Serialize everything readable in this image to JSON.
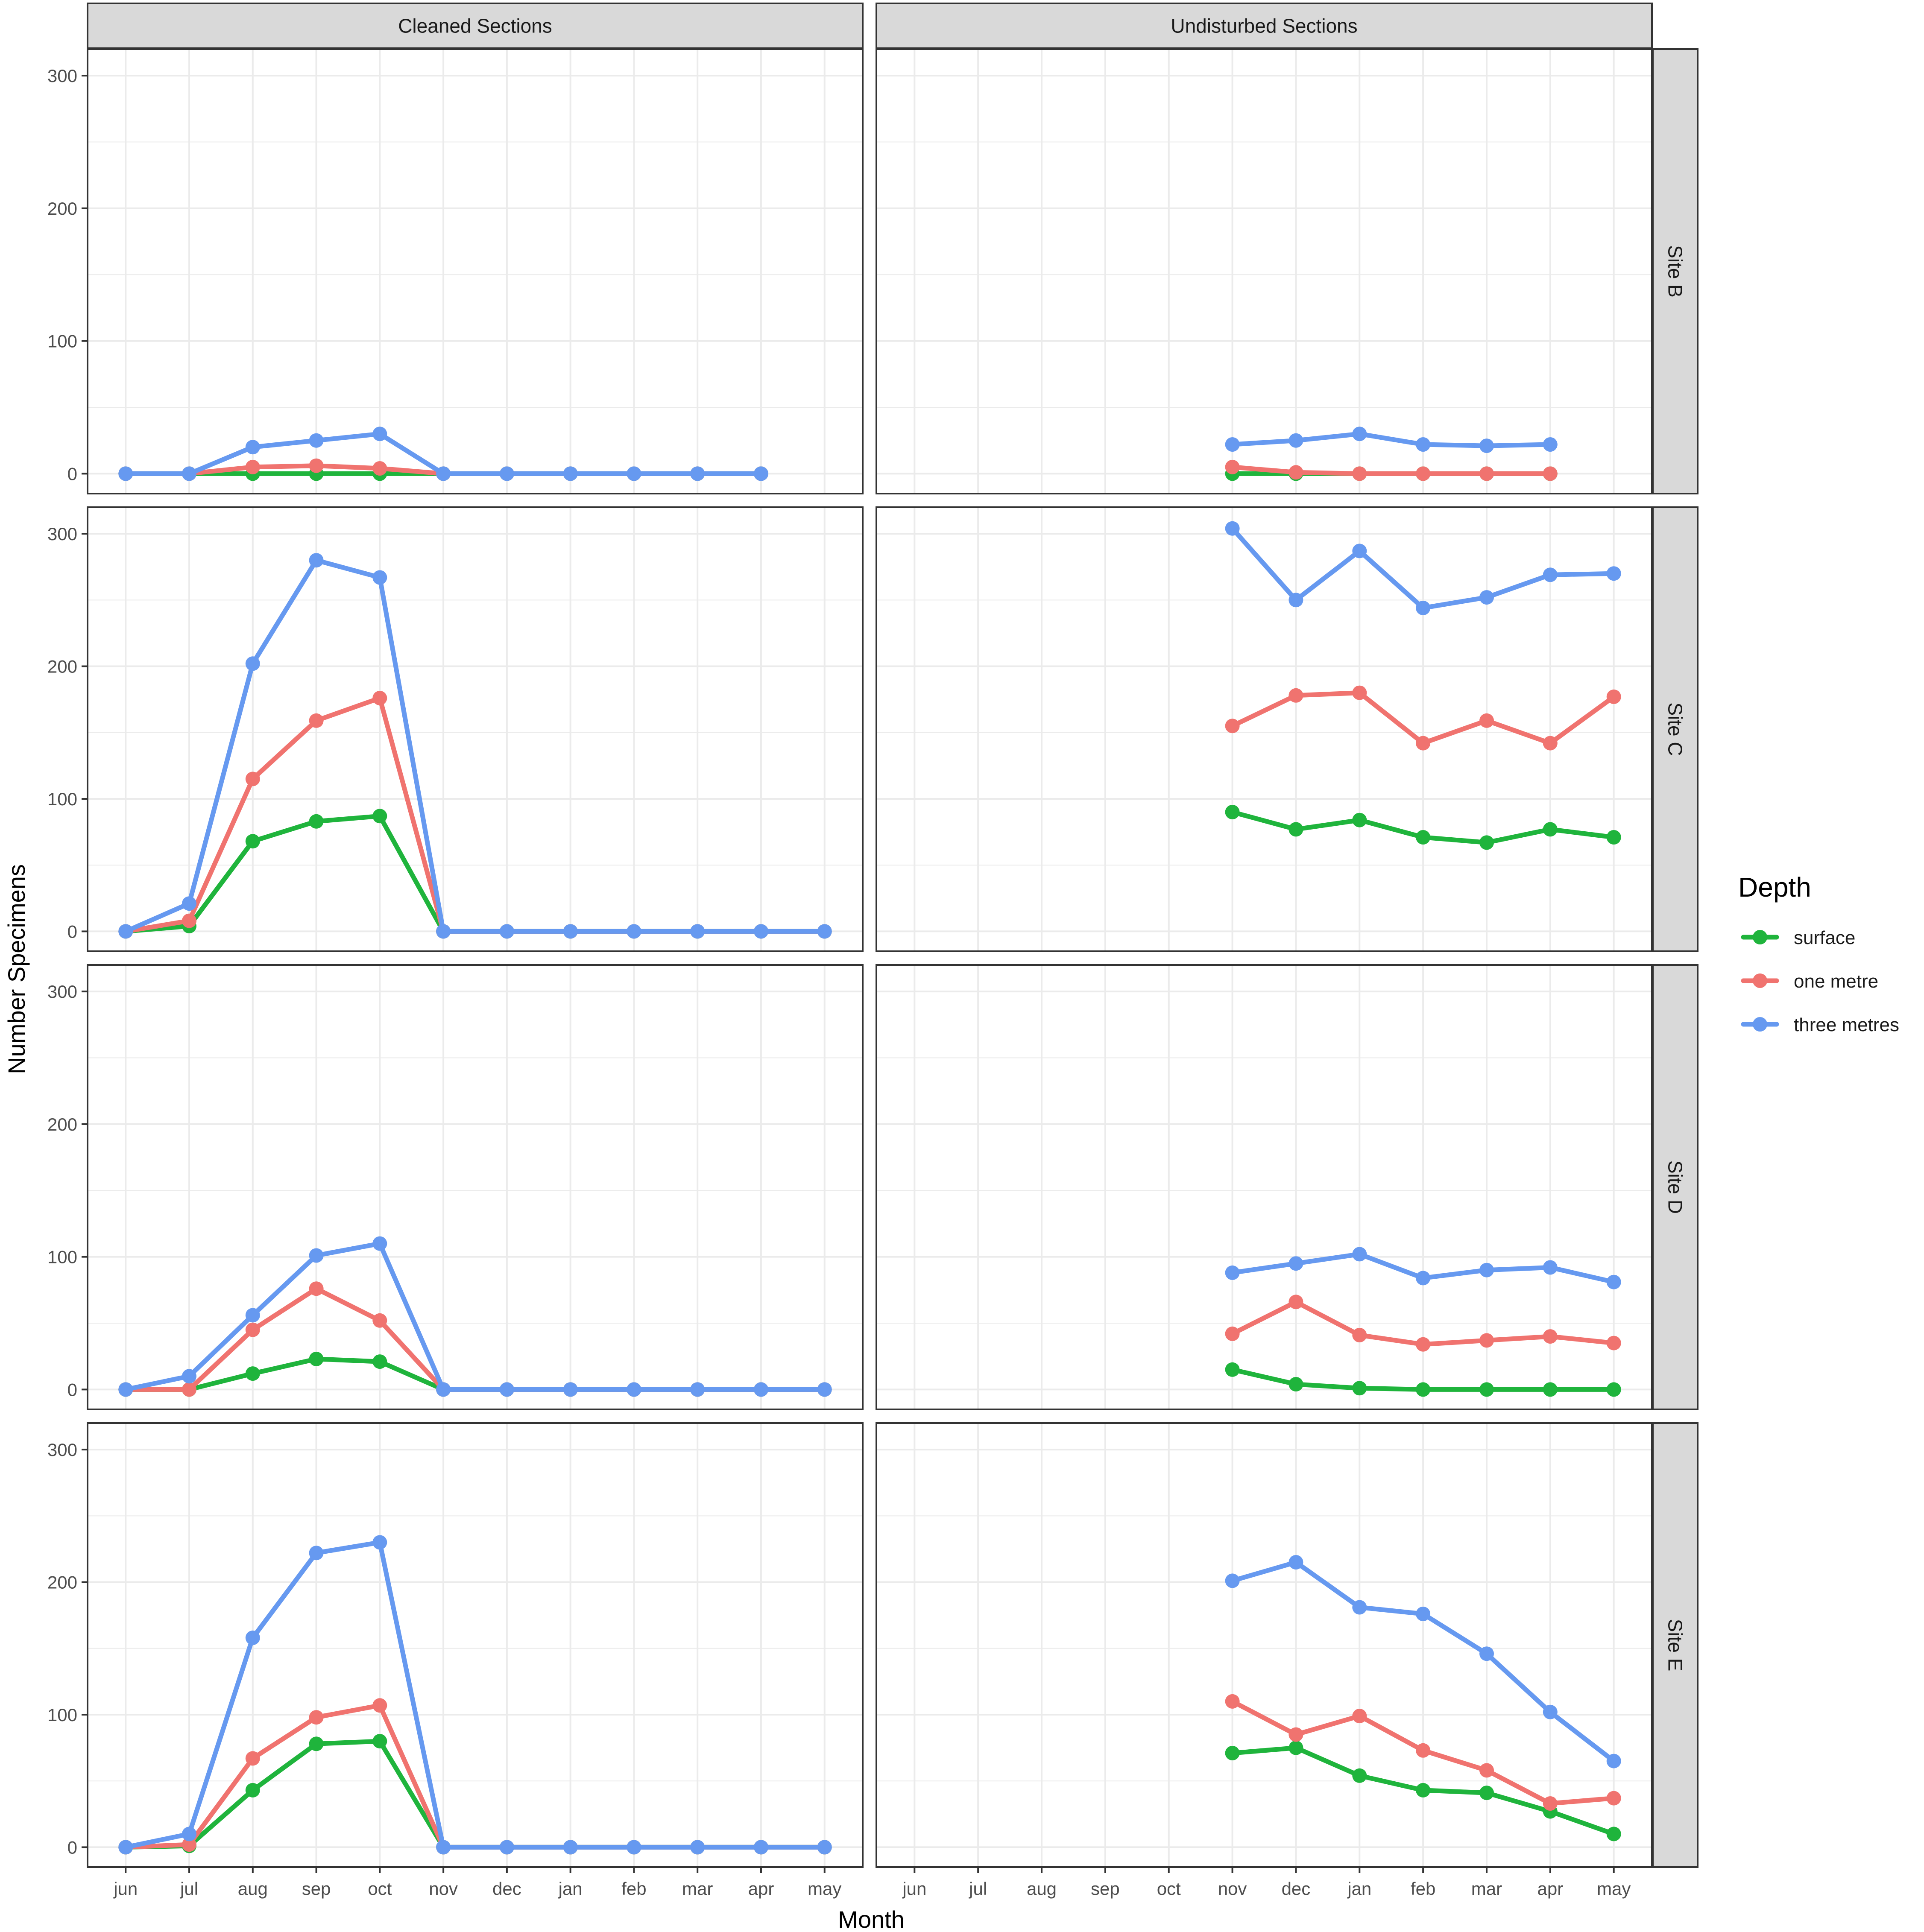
{
  "chart_data": {
    "type": "line",
    "xlabel": "Month",
    "ylabel": "Number Specimens",
    "ylim": [
      -15,
      320
    ],
    "y_ticks": [
      0,
      100,
      200,
      300
    ],
    "grid": true,
    "categories": [
      "jun",
      "jul",
      "aug",
      "sep",
      "oct",
      "nov",
      "dec",
      "jan",
      "feb",
      "mar",
      "apr",
      "may"
    ],
    "columns": [
      "Cleaned Sections",
      "Undisturbed Sections"
    ],
    "rows": [
      "Site B",
      "Site C",
      "Site D",
      "Site E"
    ],
    "legend": {
      "title": "Depth",
      "position": "right",
      "entries": [
        "surface",
        "one metre",
        "three metres"
      ]
    },
    "colors": {
      "surface": "#1FB43C",
      "one metre": "#F0736F",
      "three metres": "#6699F0",
      "strip": "#D9D9D9",
      "grid": "#EBEBEB"
    },
    "panels": [
      {
        "row": "Site B",
        "column": "Cleaned Sections",
        "series": [
          {
            "name": "surface",
            "values": [
              0,
              0,
              0,
              0,
              0,
              0,
              0,
              0,
              0,
              0,
              0,
              null
            ]
          },
          {
            "name": "one metre",
            "values": [
              0,
              0,
              5,
              6,
              4,
              0,
              0,
              0,
              0,
              0,
              0,
              null
            ]
          },
          {
            "name": "three metres",
            "values": [
              0,
              0,
              20,
              25,
              30,
              0,
              0,
              0,
              0,
              0,
              0,
              null
            ]
          }
        ]
      },
      {
        "row": "Site B",
        "column": "Undisturbed Sections",
        "series": [
          {
            "name": "surface",
            "values": [
              null,
              null,
              null,
              null,
              null,
              0,
              0,
              0,
              0,
              0,
              0,
              null
            ]
          },
          {
            "name": "one metre",
            "values": [
              null,
              null,
              null,
              null,
              null,
              5,
              1,
              0,
              0,
              0,
              0,
              null
            ]
          },
          {
            "name": "three metres",
            "values": [
              null,
              null,
              null,
              null,
              null,
              22,
              25,
              30,
              22,
              21,
              22,
              null
            ]
          }
        ]
      },
      {
        "row": "Site C",
        "column": "Cleaned Sections",
        "series": [
          {
            "name": "surface",
            "values": [
              0,
              4,
              68,
              83,
              87,
              0,
              0,
              0,
              0,
              0,
              0,
              0
            ]
          },
          {
            "name": "one metre",
            "values": [
              0,
              8,
              115,
              159,
              176,
              0,
              0,
              0,
              0,
              0,
              0,
              0
            ]
          },
          {
            "name": "three metres",
            "values": [
              0,
              21,
              202,
              280,
              267,
              0,
              0,
              0,
              0,
              0,
              0,
              0
            ]
          }
        ]
      },
      {
        "row": "Site C",
        "column": "Undisturbed Sections",
        "series": [
          {
            "name": "surface",
            "values": [
              null,
              null,
              null,
              null,
              null,
              90,
              77,
              84,
              71,
              67,
              77,
              71
            ]
          },
          {
            "name": "one metre",
            "values": [
              null,
              null,
              null,
              null,
              null,
              155,
              178,
              180,
              142,
              159,
              142,
              177
            ]
          },
          {
            "name": "three metres",
            "values": [
              null,
              null,
              null,
              null,
              null,
              304,
              250,
              287,
              244,
              252,
              269,
              270
            ]
          }
        ]
      },
      {
        "row": "Site D",
        "column": "Cleaned Sections",
        "series": [
          {
            "name": "surface",
            "values": [
              0,
              0,
              12,
              23,
              21,
              0,
              0,
              0,
              0,
              0,
              0,
              0
            ]
          },
          {
            "name": "one metre",
            "values": [
              0,
              0,
              45,
              76,
              52,
              0,
              0,
              0,
              0,
              0,
              0,
              0
            ]
          },
          {
            "name": "three metres",
            "values": [
              0,
              10,
              56,
              101,
              110,
              0,
              0,
              0,
              0,
              0,
              0,
              0
            ]
          }
        ]
      },
      {
        "row": "Site D",
        "column": "Undisturbed Sections",
        "series": [
          {
            "name": "surface",
            "values": [
              null,
              null,
              null,
              null,
              null,
              15,
              4,
              1,
              0,
              0,
              0,
              0
            ]
          },
          {
            "name": "one metre",
            "values": [
              null,
              null,
              null,
              null,
              null,
              42,
              66,
              41,
              34,
              37,
              40,
              35
            ]
          },
          {
            "name": "three metres",
            "values": [
              null,
              null,
              null,
              null,
              null,
              88,
              95,
              102,
              84,
              90,
              92,
              81
            ]
          }
        ]
      },
      {
        "row": "Site E",
        "column": "Cleaned Sections",
        "series": [
          {
            "name": "surface",
            "values": [
              0,
              1,
              43,
              78,
              80,
              0,
              0,
              0,
              0,
              0,
              0,
              0
            ]
          },
          {
            "name": "one metre",
            "values": [
              0,
              2,
              67,
              98,
              107,
              0,
              0,
              0,
              0,
              0,
              0,
              0
            ]
          },
          {
            "name": "three metres",
            "values": [
              0,
              10,
              158,
              222,
              230,
              0,
              0,
              0,
              0,
              0,
              0,
              0
            ]
          }
        ]
      },
      {
        "row": "Site E",
        "column": "Undisturbed Sections",
        "series": [
          {
            "name": "surface",
            "values": [
              null,
              null,
              null,
              null,
              null,
              71,
              75,
              54,
              43,
              41,
              27,
              10
            ]
          },
          {
            "name": "one metre",
            "values": [
              null,
              null,
              null,
              null,
              null,
              110,
              85,
              99,
              73,
              58,
              33,
              37
            ]
          },
          {
            "name": "three metres",
            "values": [
              null,
              null,
              null,
              null,
              null,
              201,
              215,
              181,
              176,
              146,
              102,
              65
            ]
          }
        ]
      }
    ]
  }
}
